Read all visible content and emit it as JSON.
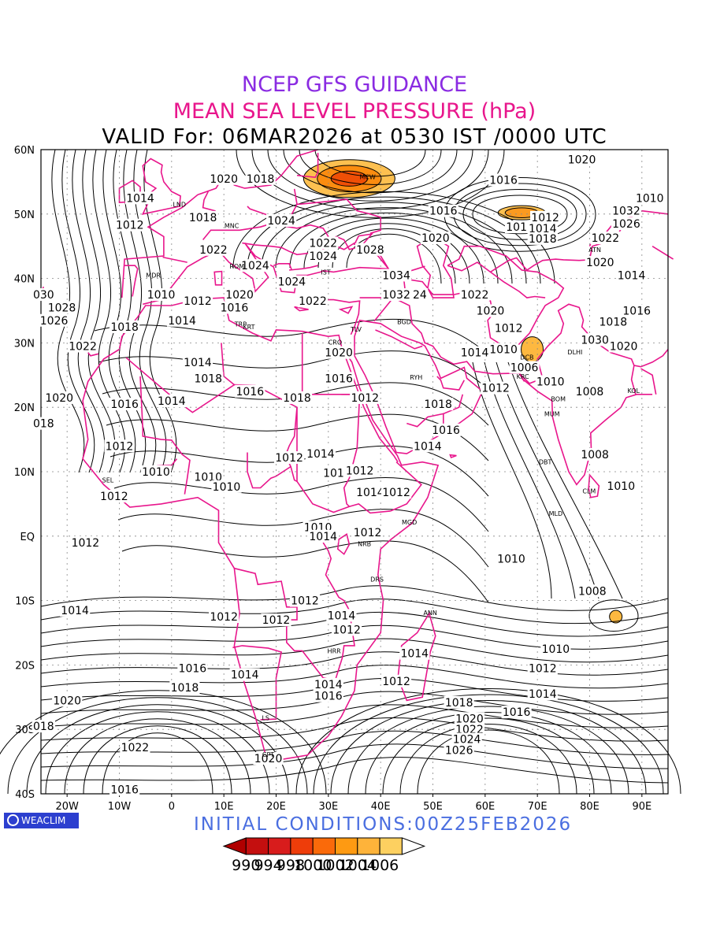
{
  "titles": {
    "line1": "NCEP GFS GUIDANCE",
    "line2": "MEAN SEA LEVEL PRESSURE (hPa)",
    "line3": "VALID For: 06MAR2026 at 0530 IST /0000 UTC",
    "initial": "INITIAL CONDITIONS:00Z25FEB2026",
    "logo": "WEACLIM"
  },
  "colors": {
    "title1": "#8a2be2",
    "title2": "#e8168c",
    "initial": "#4a6ee0",
    "borders": "#e8168c",
    "contours": "#000000"
  },
  "axes": {
    "lon_range": [
      -25,
      95
    ],
    "lat_range": [
      -40,
      60
    ],
    "lon_ticks": [
      {
        "v": -20,
        "label": "20W"
      },
      {
        "v": -10,
        "label": "10W"
      },
      {
        "v": 0,
        "label": "0"
      },
      {
        "v": 10,
        "label": "10E"
      },
      {
        "v": 20,
        "label": "20E"
      },
      {
        "v": 30,
        "label": "30E"
      },
      {
        "v": 40,
        "label": "40E"
      },
      {
        "v": 50,
        "label": "50E"
      },
      {
        "v": 60,
        "label": "60E"
      },
      {
        "v": 70,
        "label": "70E"
      },
      {
        "v": 80,
        "label": "80E"
      },
      {
        "v": 90,
        "label": "90E"
      }
    ],
    "lat_ticks": [
      {
        "v": 60,
        "label": "60N"
      },
      {
        "v": 50,
        "label": "50N"
      },
      {
        "v": 40,
        "label": "40N"
      },
      {
        "v": 30,
        "label": "30N"
      },
      {
        "v": 20,
        "label": "20N"
      },
      {
        "v": 10,
        "label": "10N"
      },
      {
        "v": 0,
        "label": "EQ"
      },
      {
        "v": -10,
        "label": "10S"
      },
      {
        "v": -20,
        "label": "20S"
      },
      {
        "v": -30,
        "label": "30S"
      },
      {
        "v": -40,
        "label": "40S"
      }
    ]
  },
  "colorbar": {
    "labels": [
      "990",
      "994",
      "998",
      "1000",
      "1002",
      "1004",
      "1006"
    ],
    "fills": [
      "#b00000",
      "#c40f0f",
      "#d81c1c",
      "#ee3d0a",
      "#fa6a0a",
      "#fe9a12",
      "#feb33a",
      "#fdd060",
      "#ffffff"
    ]
  },
  "low_fills": [
    {
      "lon": 34,
      "lat": 55.5,
      "level": 1004
    },
    {
      "lon": 67,
      "lat": 50.2,
      "level": 1006
    },
    {
      "lon": 69,
      "lat": 29,
      "level": 1006
    },
    {
      "lon": 85,
      "lat": -12.5,
      "level": 1006
    }
  ],
  "contour_labels": [
    {
      "text": "1020",
      "lon": 10,
      "lat": 55.5
    },
    {
      "text": "1018",
      "lon": 17,
      "lat": 55.5
    },
    {
      "text": "1014",
      "lon": -6,
      "lat": 52.5
    },
    {
      "text": "1012",
      "lon": -8,
      "lat": 48.3
    },
    {
      "text": "1018",
      "lon": 6,
      "lat": 49.5
    },
    {
      "text": "1024",
      "lon": 21,
      "lat": 49
    },
    {
      "text": "1022",
      "lon": 8,
      "lat": 44.5
    },
    {
      "text": "1024",
      "lon": 16,
      "lat": 42
    },
    {
      "text": "1010",
      "lon": -2,
      "lat": 37.5
    },
    {
      "text": "1012",
      "lon": 5,
      "lat": 36.5
    },
    {
      "text": "1016",
      "lon": 12,
      "lat": 35.5
    },
    {
      "text": "1020",
      "lon": 13,
      "lat": 37.5
    },
    {
      "text": "1014",
      "lon": 2,
      "lat": 33.5
    },
    {
      "text": "030",
      "lon": -24.5,
      "lat": 37.5
    },
    {
      "text": "1028",
      "lon": -21,
      "lat": 35.5
    },
    {
      "text": "1026",
      "lon": -22.5,
      "lat": 33.5
    },
    {
      "text": "1018",
      "lon": -9,
      "lat": 32.5
    },
    {
      "text": "1022",
      "lon": -17,
      "lat": 29.5
    },
    {
      "text": "1022",
      "lon": 29,
      "lat": 45.5
    },
    {
      "text": "1024",
      "lon": 29,
      "lat": 43.5
    },
    {
      "text": "1028",
      "lon": 38,
      "lat": 44.5
    },
    {
      "text": "1024",
      "lon": 23,
      "lat": 39.5
    },
    {
      "text": "1022",
      "lon": 27,
      "lat": 36.5
    },
    {
      "text": "1034",
      "lon": 43,
      "lat": 40.5
    },
    {
      "text": "1032",
      "lon": 43,
      "lat": 37.5
    },
    {
      "text": "24",
      "lon": 47.5,
      "lat": 37.5
    },
    {
      "text": "1020",
      "lon": 32,
      "lat": 28.5
    },
    {
      "text": "1016",
      "lon": 32,
      "lat": 24.5
    },
    {
      "text": "1012",
      "lon": 37,
      "lat": 21.5
    },
    {
      "text": "1018",
      "lon": 24,
      "lat": 21.5
    },
    {
      "text": "1016",
      "lon": 15,
      "lat": 22.5
    },
    {
      "text": "1018",
      "lon": 7,
      "lat": 24.5
    },
    {
      "text": "1014",
      "lon": 5,
      "lat": 27
    },
    {
      "text": "1014",
      "lon": 0,
      "lat": 21
    },
    {
      "text": "1016",
      "lon": -9,
      "lat": 20.5
    },
    {
      "text": "1020",
      "lon": -21.5,
      "lat": 21.5
    },
    {
      "text": "018",
      "lon": -24.5,
      "lat": 17.5
    },
    {
      "text": "1012",
      "lon": -10,
      "lat": 14
    },
    {
      "text": "1010",
      "lon": -3,
      "lat": 10
    },
    {
      "text": "1010",
      "lon": 7,
      "lat": 9.2
    },
    {
      "text": "1010",
      "lon": 10.5,
      "lat": 7.7
    },
    {
      "text": "1012",
      "lon": -11,
      "lat": 6.2
    },
    {
      "text": "1012",
      "lon": 22.5,
      "lat": 12.2
    },
    {
      "text": "1014",
      "lon": 28.5,
      "lat": 12.8
    },
    {
      "text": "1014",
      "lon": 49,
      "lat": 14
    },
    {
      "text": "1016",
      "lon": 52.5,
      "lat": 16.5
    },
    {
      "text": "1018",
      "lon": 51,
      "lat": 20.5
    },
    {
      "text": "101",
      "lon": 31,
      "lat": 9.8
    },
    {
      "text": "1012",
      "lon": 36,
      "lat": 10.2
    },
    {
      "text": "1014",
      "lon": 38,
      "lat": 6.8
    },
    {
      "text": "1012",
      "lon": 43,
      "lat": 6.8
    },
    {
      "text": "1010",
      "lon": 28,
      "lat": 1.4
    },
    {
      "text": "1014",
      "lon": 29,
      "lat": 0
    },
    {
      "text": "1012",
      "lon": 37.5,
      "lat": 0.6
    },
    {
      "text": "1012",
      "lon": -16.5,
      "lat": -1
    },
    {
      "text": "1010",
      "lon": 65,
      "lat": -3.5
    },
    {
      "text": "1008",
      "lon": 80.5,
      "lat": -8.5
    },
    {
      "text": "1014",
      "lon": -18.5,
      "lat": -11.5
    },
    {
      "text": "1012",
      "lon": 25.5,
      "lat": -10
    },
    {
      "text": "1012",
      "lon": 10,
      "lat": -12.5
    },
    {
      "text": "1012",
      "lon": 20,
      "lat": -13
    },
    {
      "text": "1014",
      "lon": 32.5,
      "lat": -12.3
    },
    {
      "text": "1012",
      "lon": 33.5,
      "lat": -14.5
    },
    {
      "text": "1014",
      "lon": 46.5,
      "lat": -18.2
    },
    {
      "text": "1010",
      "lon": 73.5,
      "lat": -17.5
    },
    {
      "text": "1012",
      "lon": 71,
      "lat": -20.5
    },
    {
      "text": "1016",
      "lon": 4,
      "lat": -20.5
    },
    {
      "text": "1014",
      "lon": 14,
      "lat": -21.5
    },
    {
      "text": "1014",
      "lon": 30,
      "lat": -23
    },
    {
      "text": "1016",
      "lon": 30,
      "lat": -24.8
    },
    {
      "text": "1012",
      "lon": 43,
      "lat": -22.5
    },
    {
      "text": "1014",
      "lon": 71,
      "lat": -24.5
    },
    {
      "text": "1018",
      "lon": 2.5,
      "lat": -23.5
    },
    {
      "text": "1020",
      "lon": -20,
      "lat": -25.5
    },
    {
      "text": "018",
      "lon": -24.5,
      "lat": -29.5
    },
    {
      "text": "1018",
      "lon": 55,
      "lat": -25.8
    },
    {
      "text": "1016",
      "lon": 66,
      "lat": -27.3
    },
    {
      "text": "1020",
      "lon": 57,
      "lat": -28.3
    },
    {
      "text": "1022",
      "lon": 57,
      "lat": -30
    },
    {
      "text": "1024",
      "lon": 56.5,
      "lat": -31.5
    },
    {
      "text": "1026",
      "lon": 55,
      "lat": -33.2
    },
    {
      "text": "1022",
      "lon": -7,
      "lat": -32.8
    },
    {
      "text": "1020",
      "lon": 18.5,
      "lat": -34.5
    },
    {
      "text": "1016",
      "lon": -9,
      "lat": -39.3
    },
    {
      "text": "1020",
      "lon": 78.5,
      "lat": 58.5
    },
    {
      "text": "1016",
      "lon": 63.5,
      "lat": 55.3
    },
    {
      "text": "1016",
      "lon": 52,
      "lat": 50.5
    },
    {
      "text": "1020",
      "lon": 50.5,
      "lat": 46.3
    },
    {
      "text": "1012",
      "lon": 71.5,
      "lat": 49.5
    },
    {
      "text": "1014",
      "lon": 71,
      "lat": 47.8
    },
    {
      "text": "101",
      "lon": 66,
      "lat": 48
    },
    {
      "text": "1018",
      "lon": 71,
      "lat": 46.2
    },
    {
      "text": "1010",
      "lon": 91.5,
      "lat": 52.5
    },
    {
      "text": "1032",
      "lon": 87,
      "lat": 50.5
    },
    {
      "text": "1026",
      "lon": 87,
      "lat": 48.5
    },
    {
      "text": "1022",
      "lon": 83,
      "lat": 46.3
    },
    {
      "text": "1020",
      "lon": 82,
      "lat": 42.5
    },
    {
      "text": "1014",
      "lon": 88,
      "lat": 40.5
    },
    {
      "text": "1016",
      "lon": 89,
      "lat": 35
    },
    {
      "text": "1018",
      "lon": 84.5,
      "lat": 33.3
    },
    {
      "text": "1022",
      "lon": 58,
      "lat": 37.5
    },
    {
      "text": "1020",
      "lon": 61,
      "lat": 35
    },
    {
      "text": "1012",
      "lon": 64.5,
      "lat": 32.3
    },
    {
      "text": "1014",
      "lon": 58,
      "lat": 28.5
    },
    {
      "text": "1010",
      "lon": 63.5,
      "lat": 29
    },
    {
      "text": "1006",
      "lon": 67.5,
      "lat": 26.2
    },
    {
      "text": "1010",
      "lon": 72.5,
      "lat": 24
    },
    {
      "text": "1012",
      "lon": 62,
      "lat": 23
    },
    {
      "text": "1008",
      "lon": 80,
      "lat": 22.5
    },
    {
      "text": "1020",
      "lon": 86.5,
      "lat": 29.5
    },
    {
      "text": "1030",
      "lon": 81,
      "lat": 30.5
    },
    {
      "text": "1008",
      "lon": 81,
      "lat": 12.7
    },
    {
      "text": "1010",
      "lon": 86,
      "lat": 7.8
    }
  ],
  "stations": [
    {
      "text": "LND",
      "lon": 1.5,
      "lat": 51.5
    },
    {
      "text": "MDR",
      "lon": -3.5,
      "lat": 40.5
    },
    {
      "text": "MNC",
      "lon": 11.5,
      "lat": 48.2
    },
    {
      "text": "ROM",
      "lon": 12.5,
      "lat": 41.9
    },
    {
      "text": "TRP",
      "lon": 13.2,
      "lat": 32.9
    },
    {
      "text": "KRT",
      "lon": 14.8,
      "lat": 32.5
    },
    {
      "text": "MCW",
      "lon": 37.5,
      "lat": 55.8
    },
    {
      "text": "IST",
      "lon": 29.5,
      "lat": 41
    },
    {
      "text": "CRO",
      "lon": 31.3,
      "lat": 30.1
    },
    {
      "text": "TLV",
      "lon": 35.3,
      "lat": 32.1
    },
    {
      "text": "BGD",
      "lon": 44.5,
      "lat": 33.3
    },
    {
      "text": "RYH",
      "lon": 46.8,
      "lat": 24.7
    },
    {
      "text": "KRC",
      "lon": 67.2,
      "lat": 24.8
    },
    {
      "text": "MUM",
      "lon": 72.8,
      "lat": 19
    },
    {
      "text": "DBT",
      "lon": 71.5,
      "lat": 11.5
    },
    {
      "text": "DLHI",
      "lon": 77.2,
      "lat": 28.6
    },
    {
      "text": "BOM",
      "lon": 74,
      "lat": 21.3
    },
    {
      "text": "SEL",
      "lon": -12.2,
      "lat": 8.7
    },
    {
      "text": "MGD",
      "lon": 45.5,
      "lat": 2.2
    },
    {
      "text": "NRB",
      "lon": 36.9,
      "lat": -1.2
    },
    {
      "text": "DRS",
      "lon": 39.3,
      "lat": -6.7
    },
    {
      "text": "ANN",
      "lon": 49.5,
      "lat": -11.9
    },
    {
      "text": "HRR",
      "lon": 31.1,
      "lat": -17.8
    },
    {
      "text": "LS",
      "lon": 18,
      "lat": -28.2
    },
    {
      "text": "CPT",
      "lon": 18.5,
      "lat": -33.9
    },
    {
      "text": "MLD",
      "lon": 73.5,
      "lat": 3.5
    },
    {
      "text": "CLM",
      "lon": 79.9,
      "lat": 7
    },
    {
      "text": "ATN",
      "lon": 81,
      "lat": 44.5
    },
    {
      "text": "DCB",
      "lon": 68,
      "lat": 27.8
    },
    {
      "text": "KOL",
      "lon": 88.4,
      "lat": 22.6
    }
  ]
}
